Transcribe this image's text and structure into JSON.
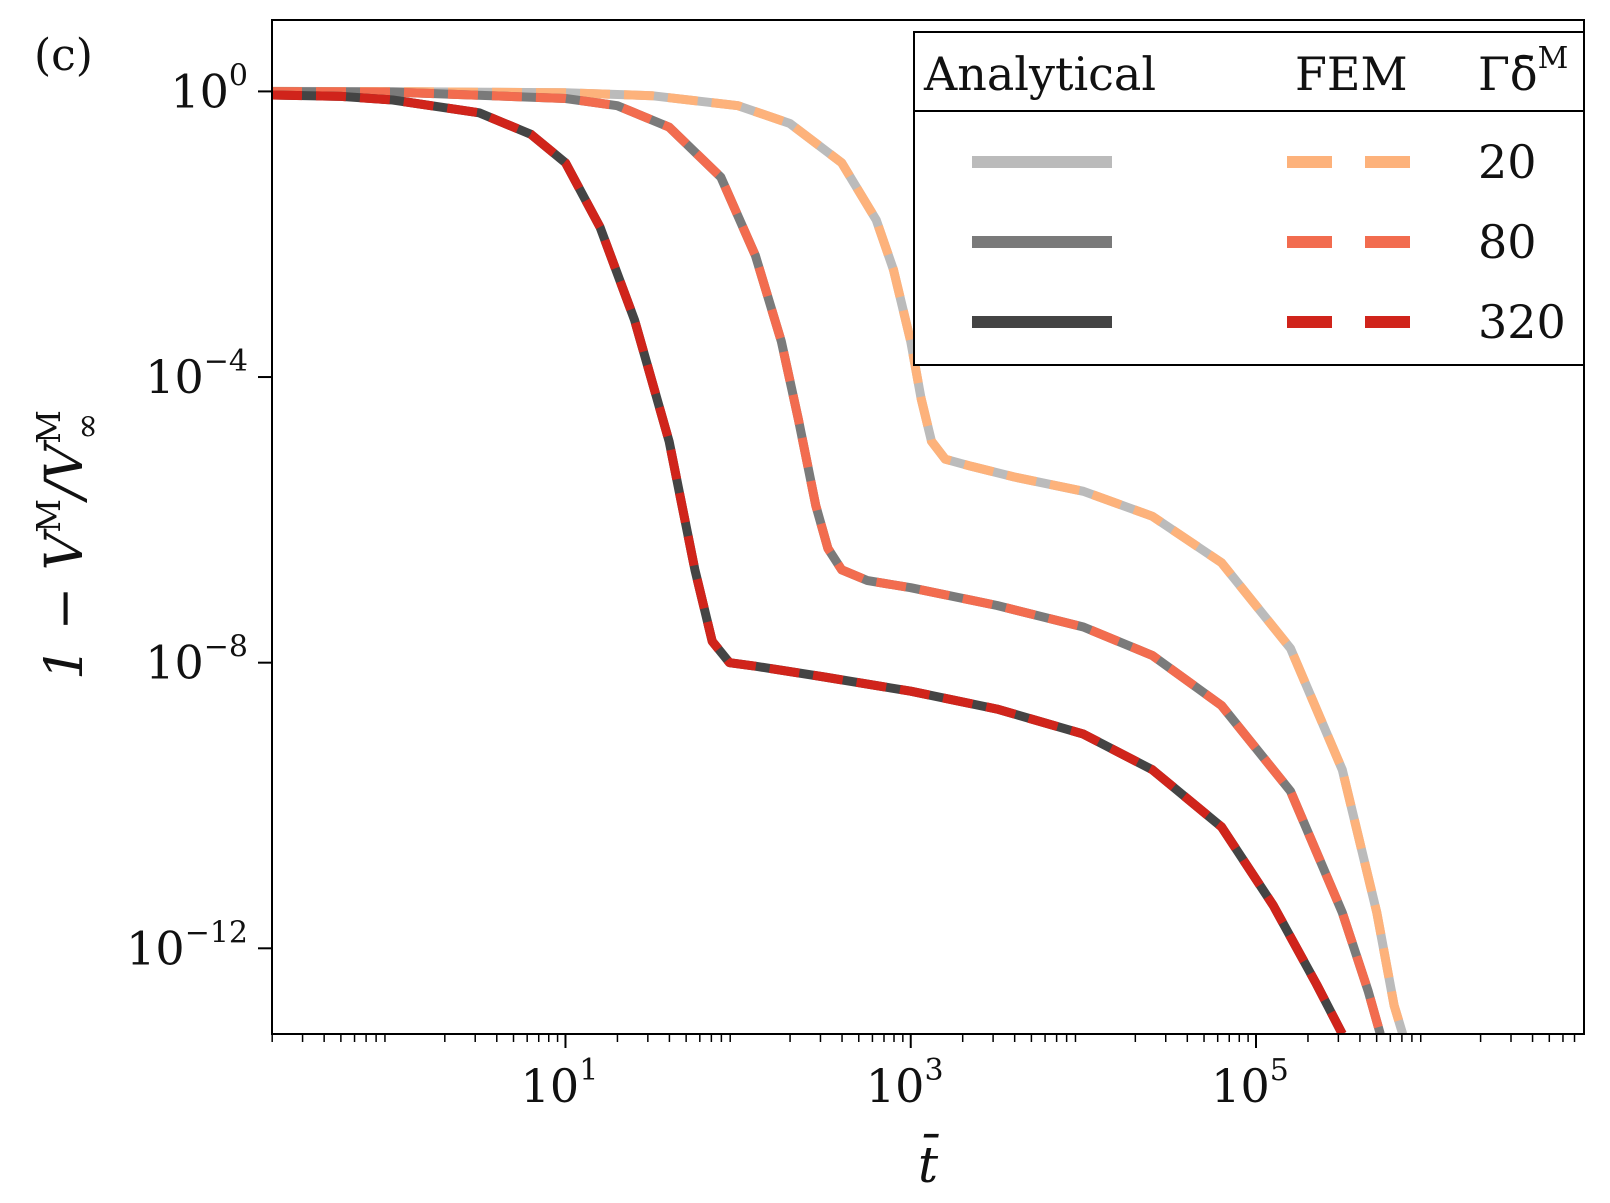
{
  "panel_label": "(c)",
  "chart_data": {
    "type": "line",
    "title": "",
    "xlabel": "t̄",
    "ylabel": "1 − V",
    "ylabel_parts": {
      "prefix": "1 − V",
      "sup1": "M",
      "mid": "/V",
      "sup2": "M",
      "sub2": "∞"
    },
    "xscale": "log",
    "yscale": "log",
    "xlim_log10": [
      -0.7,
      6.9
    ],
    "ylim_log10": [
      -13.2,
      1.0
    ],
    "x_ticks": [
      {
        "base": "10",
        "exp": "1",
        "log10": 1
      },
      {
        "base": "10",
        "exp": "3",
        "log10": 3
      },
      {
        "base": "10",
        "exp": "5",
        "log10": 5
      }
    ],
    "y_ticks": [
      {
        "base": "10",
        "exp": "0",
        "log10": 0
      },
      {
        "base": "10",
        "exp": "−4",
        "log10": -4
      },
      {
        "base": "10",
        "exp": "−8",
        "log10": -8
      },
      {
        "base": "10",
        "exp": "−12",
        "log10": -12
      }
    ],
    "legend": {
      "position": "top-right",
      "col_analytical": "Analytical",
      "col_fem": "FEM",
      "col_param_base": "Γδ̄",
      "col_param_sup": "M",
      "rows": [
        "20",
        "80",
        "320"
      ]
    },
    "series": [
      {
        "name": "Γδ̄M = 20",
        "analytical_color": "#bbbbbb",
        "fem_color": "#fdb27b",
        "points_log10": [
          [
            -0.7,
            0
          ],
          [
            0,
            -0.002
          ],
          [
            1,
            -0.02
          ],
          [
            1.5,
            -0.06
          ],
          [
            2,
            -0.2
          ],
          [
            2.3,
            -0.45
          ],
          [
            2.6,
            -1.0
          ],
          [
            2.8,
            -1.8
          ],
          [
            2.9,
            -2.5
          ],
          [
            3.0,
            -3.5
          ],
          [
            3.06,
            -4.3
          ],
          [
            3.12,
            -4.9
          ],
          [
            3.2,
            -5.15
          ],
          [
            3.35,
            -5.25
          ],
          [
            3.6,
            -5.4
          ],
          [
            4.0,
            -5.6
          ],
          [
            4.4,
            -5.95
          ],
          [
            4.8,
            -6.6
          ],
          [
            5.2,
            -7.8
          ],
          [
            5.5,
            -9.5
          ],
          [
            5.7,
            -11.5
          ],
          [
            5.8,
            -12.8
          ],
          [
            5.85,
            -13.2
          ]
        ]
      },
      {
        "name": "Γδ̄M = 80",
        "analytical_color": "#7a7a7a",
        "fem_color": "#f26c4f",
        "points_log10": [
          [
            -0.7,
            -0.002
          ],
          [
            0,
            -0.01
          ],
          [
            1,
            -0.1
          ],
          [
            1.3,
            -0.2
          ],
          [
            1.6,
            -0.5
          ],
          [
            1.9,
            -1.2
          ],
          [
            2.1,
            -2.3
          ],
          [
            2.25,
            -3.5
          ],
          [
            2.35,
            -4.6
          ],
          [
            2.45,
            -5.8
          ],
          [
            2.52,
            -6.4
          ],
          [
            2.6,
            -6.7
          ],
          [
            2.75,
            -6.85
          ],
          [
            3.0,
            -6.95
          ],
          [
            3.5,
            -7.2
          ],
          [
            4.0,
            -7.5
          ],
          [
            4.4,
            -7.9
          ],
          [
            4.8,
            -8.6
          ],
          [
            5.2,
            -9.8
          ],
          [
            5.5,
            -11.5
          ],
          [
            5.65,
            -12.6
          ],
          [
            5.72,
            -13.2
          ]
        ]
      },
      {
        "name": "Γδ̄M = 320",
        "analytical_color": "#444444",
        "fem_color": "#d0241b",
        "points_log10": [
          [
            -0.7,
            -0.05
          ],
          [
            -0.3,
            -0.07
          ],
          [
            0,
            -0.12
          ],
          [
            0.5,
            -0.3
          ],
          [
            0.8,
            -0.6
          ],
          [
            1.0,
            -1.0
          ],
          [
            1.2,
            -1.9
          ],
          [
            1.4,
            -3.2
          ],
          [
            1.6,
            -4.9
          ],
          [
            1.75,
            -6.7
          ],
          [
            1.85,
            -7.7
          ],
          [
            1.95,
            -8.0
          ],
          [
            2.1,
            -8.05
          ],
          [
            2.5,
            -8.2
          ],
          [
            3.0,
            -8.4
          ],
          [
            3.5,
            -8.65
          ],
          [
            4.0,
            -9.0
          ],
          [
            4.4,
            -9.5
          ],
          [
            4.8,
            -10.3
          ],
          [
            5.1,
            -11.4
          ],
          [
            5.35,
            -12.5
          ],
          [
            5.5,
            -13.2
          ]
        ]
      }
    ]
  }
}
